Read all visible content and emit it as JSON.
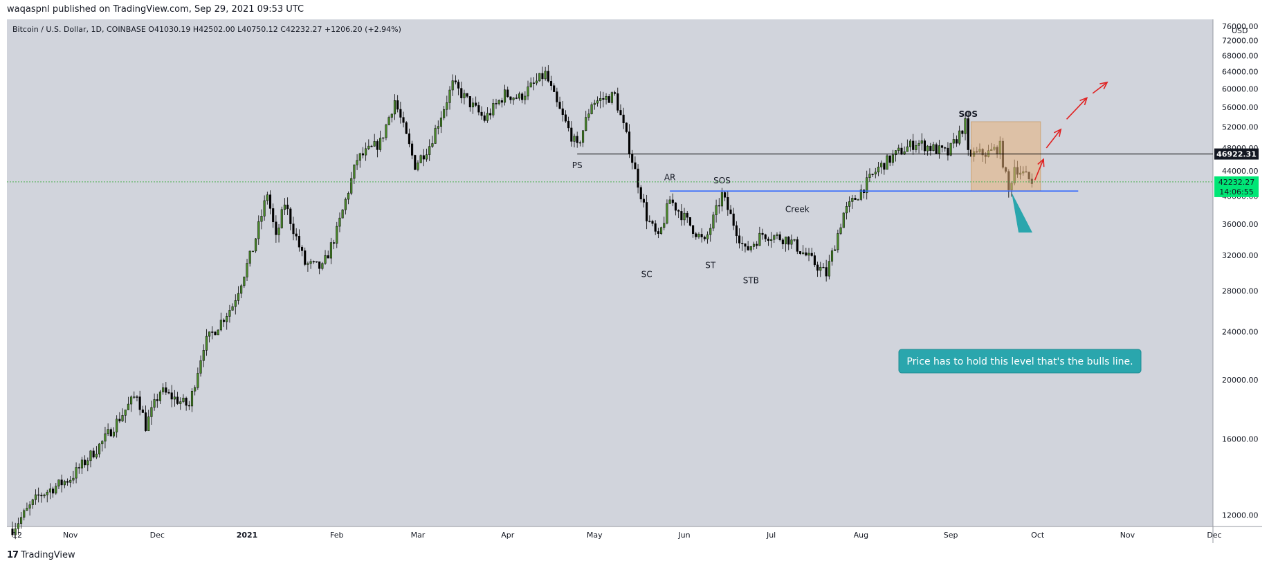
{
  "publish_line": "waqaspnl published on TradingView.com, Sep 29, 2021 09:53 UTC",
  "footer": {
    "logo_mark": "17",
    "brand": "TradingView"
  },
  "symbol_header": "Bitcoin / U.S. Dollar, 1D, COINBASE  O41030.19  H42502.00  L40750.12  C42232.27  +1206.20 (+2.94%)",
  "colors": {
    "chart_bg": "#d1d4dc",
    "axis_bg": "#ffffff",
    "candle_up": "#26a69a",
    "candle_up_fill": "#4a8a2a",
    "candle_down": "#000000",
    "support_line": "#2962ff",
    "resistance_line": "#000000",
    "box_fill": "#e8b07a",
    "arrow": "#e02020",
    "callout": "#2aa6ad",
    "price_tag_green": "#00e676",
    "dotted_price_line": "#4caf50"
  },
  "chart_data": {
    "type": "candlestick",
    "title": "Bitcoin / U.S. Dollar, 1D, COINBASE",
    "ohlc_summary": {
      "open": 41030.19,
      "high": 42502.0,
      "low": 40750.12,
      "close": 42232.27,
      "change": 1206.2,
      "change_pct": "+2.94%"
    },
    "currency_label": "USD",
    "y_axis": {
      "scale": "log",
      "range": [
        11500,
        78000
      ],
      "ticks": [
        "76000.00",
        "72000.00",
        "68000.00",
        "64000.00",
        "60000.00",
        "56000.00",
        "52000.00",
        "48000.00",
        "44000.00",
        "40000.00",
        "36000.00",
        "32000.00",
        "28000.00",
        "24000.00",
        "20000.00",
        "16000.00",
        "12000.00"
      ]
    },
    "x_axis": {
      "start": "2020-10-12",
      "end": "2021-12-01",
      "ticks": [
        {
          "label": "12",
          "date": "2020-10-12"
        },
        {
          "label": "Nov",
          "date": "2020-11-01"
        },
        {
          "label": "Dec",
          "date": "2020-12-01"
        },
        {
          "label": "2021",
          "date": "2021-01-01",
          "bold": true
        },
        {
          "label": "Feb",
          "date": "2021-02-01"
        },
        {
          "label": "Mar",
          "date": "2021-03-01"
        },
        {
          "label": "Apr",
          "date": "2021-04-01"
        },
        {
          "label": "May",
          "date": "2021-05-01"
        },
        {
          "label": "Jun",
          "date": "2021-06-01"
        },
        {
          "label": "Jul",
          "date": "2021-07-01"
        },
        {
          "label": "Aug",
          "date": "2021-08-01"
        },
        {
          "label": "Sep",
          "date": "2021-09-01"
        },
        {
          "label": "Oct",
          "date": "2021-10-01"
        },
        {
          "label": "Nov",
          "date": "2021-11-01"
        },
        {
          "label": "Dec",
          "date": "2021-12-01"
        }
      ]
    },
    "price_path": [
      {
        "date": "2020-10-12",
        "price": 11400
      },
      {
        "date": "2020-10-21",
        "price": 12900
      },
      {
        "date": "2020-11-01",
        "price": 13800
      },
      {
        "date": "2020-11-12",
        "price": 15800
      },
      {
        "date": "2020-11-24",
        "price": 19000
      },
      {
        "date": "2020-11-27",
        "price": 16800
      },
      {
        "date": "2020-12-02",
        "price": 19200
      },
      {
        "date": "2020-12-12",
        "price": 18100
      },
      {
        "date": "2020-12-17",
        "price": 22800
      },
      {
        "date": "2020-12-27",
        "price": 26500
      },
      {
        "date": "2021-01-03",
        "price": 32800
      },
      {
        "date": "2021-01-08",
        "price": 40500
      },
      {
        "date": "2021-01-11",
        "price": 34000
      },
      {
        "date": "2021-01-14",
        "price": 39000
      },
      {
        "date": "2021-01-21",
        "price": 31000
      },
      {
        "date": "2021-01-27",
        "price": 30500
      },
      {
        "date": "2021-02-01",
        "price": 35000
      },
      {
        "date": "2021-02-08",
        "price": 46000
      },
      {
        "date": "2021-02-16",
        "price": 49000
      },
      {
        "date": "2021-02-21",
        "price": 57500
      },
      {
        "date": "2021-02-28",
        "price": 45000
      },
      {
        "date": "2021-03-05",
        "price": 48500
      },
      {
        "date": "2021-03-13",
        "price": 61000
      },
      {
        "date": "2021-03-24",
        "price": 53500
      },
      {
        "date": "2021-03-31",
        "price": 58800
      },
      {
        "date": "2021-04-05",
        "price": 58000
      },
      {
        "date": "2021-04-14",
        "price": 63500
      },
      {
        "date": "2021-04-18",
        "price": 56500
      },
      {
        "date": "2021-04-25",
        "price": 48000
      },
      {
        "date": "2021-04-30",
        "price": 57000
      },
      {
        "date": "2021-05-08",
        "price": 58500
      },
      {
        "date": "2021-05-12",
        "price": 50000
      },
      {
        "date": "2021-05-19",
        "price": 37000
      },
      {
        "date": "2021-05-23",
        "price": 34000
      },
      {
        "date": "2021-05-27",
        "price": 39500
      },
      {
        "date": "2021-06-08",
        "price": 33500
      },
      {
        "date": "2021-06-14",
        "price": 40200
      },
      {
        "date": "2021-06-22",
        "price": 32500
      },
      {
        "date": "2021-06-28",
        "price": 34700
      },
      {
        "date": "2021-07-07",
        "price": 34000
      },
      {
        "date": "2021-07-20",
        "price": 29800
      },
      {
        "date": "2021-07-26",
        "price": 37500
      },
      {
        "date": "2021-08-07",
        "price": 44500
      },
      {
        "date": "2021-08-14",
        "price": 47200
      },
      {
        "date": "2021-08-20",
        "price": 49000
      },
      {
        "date": "2021-08-31",
        "price": 47000
      },
      {
        "date": "2021-09-06",
        "price": 52600
      },
      {
        "date": "2021-09-07",
        "price": 46800
      },
      {
        "date": "2021-09-14",
        "price": 47100
      },
      {
        "date": "2021-09-18",
        "price": 48200
      },
      {
        "date": "2021-09-21",
        "price": 40700
      },
      {
        "date": "2021-09-23",
        "price": 44800
      },
      {
        "date": "2021-09-29",
        "price": 42232
      }
    ],
    "annotations": [
      {
        "text": "PS",
        "date": "2021-04-25",
        "price": 44500
      },
      {
        "text": "SC",
        "date": "2021-05-19",
        "price": 29500
      },
      {
        "text": "AR",
        "date": "2021-05-27",
        "price": 42500
      },
      {
        "text": "SOS",
        "date": "2021-06-14",
        "price": 42000
      },
      {
        "text": "ST",
        "date": "2021-06-10",
        "price": 30500
      },
      {
        "text": "STB",
        "date": "2021-06-24",
        "price": 28800
      },
      {
        "text": "Creek",
        "date": "2021-07-10",
        "price": 37700
      },
      {
        "text": "SOS",
        "date": "2021-09-07",
        "price": 54000,
        "bold": true
      }
    ],
    "horizontal_lines": [
      {
        "name": "resistance",
        "price": 46922.31,
        "from": "2021-04-25",
        "to": "2021-12-15",
        "label": "46922.31"
      },
      {
        "name": "support",
        "price": 40800,
        "from": "2021-05-27",
        "to": "2021-10-15"
      }
    ],
    "box": {
      "from": "2021-09-08",
      "to": "2021-10-02",
      "low": 40800,
      "high": 53000
    },
    "projection_arrows": [
      {
        "from": {
          "date": "2021-09-30",
          "price": 42500
        },
        "to": {
          "date": "2021-10-03",
          "price": 46000
        }
      },
      {
        "from": {
          "date": "2021-10-04",
          "price": 48000
        },
        "to": {
          "date": "2021-10-09",
          "price": 51500
        }
      },
      {
        "from": {
          "date": "2021-10-11",
          "price": 53500
        },
        "to": {
          "date": "2021-10-18",
          "price": 58000
        }
      },
      {
        "from": {
          "date": "2021-10-20",
          "price": 59000
        },
        "to": {
          "date": "2021-10-25",
          "price": 61500
        }
      }
    ],
    "callout": {
      "text": "Price has to hold this level that's the bulls line.",
      "anchor": {
        "date": "2021-09-22",
        "price": 40800
      }
    },
    "last_price": {
      "value": "42232.27",
      "countdown": "14:06:55"
    }
  }
}
